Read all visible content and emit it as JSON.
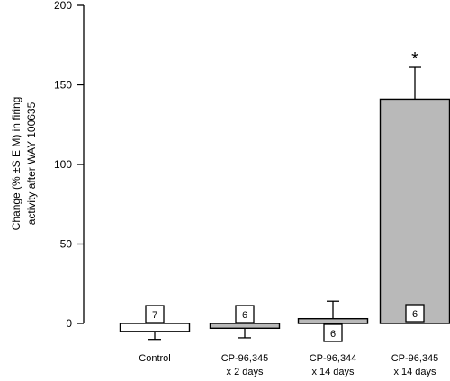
{
  "chart_data": {
    "type": "bar",
    "ylabel_lines": [
      "Change (% ±S E M) in firing",
      "activity after WAY 100635"
    ],
    "ylim": [
      0,
      200
    ],
    "yticks": [
      0,
      50,
      100,
      150,
      200
    ],
    "categories": [
      {
        "line1": "Control",
        "line2": ""
      },
      {
        "line1": "CP-96,345",
        "line2": "x 2 days"
      },
      {
        "line1": "CP-96,344",
        "line2": "x 14 days"
      },
      {
        "line1": "CP-96,345",
        "line2": "x 14 days"
      }
    ],
    "values": [
      -5,
      -3,
      3,
      141
    ],
    "sem": [
      5,
      6,
      11,
      20
    ],
    "n": [
      "7",
      "6",
      "6",
      "6"
    ],
    "n_position": [
      "above",
      "above",
      "below",
      "inside"
    ],
    "fill": [
      "#ffffff",
      "#b9b9b9",
      "#b9b9b9",
      "#b9b9b9"
    ],
    "annotations": [
      {
        "category_index": 3,
        "text": "*"
      }
    ],
    "grid": false,
    "legend": "none"
  }
}
